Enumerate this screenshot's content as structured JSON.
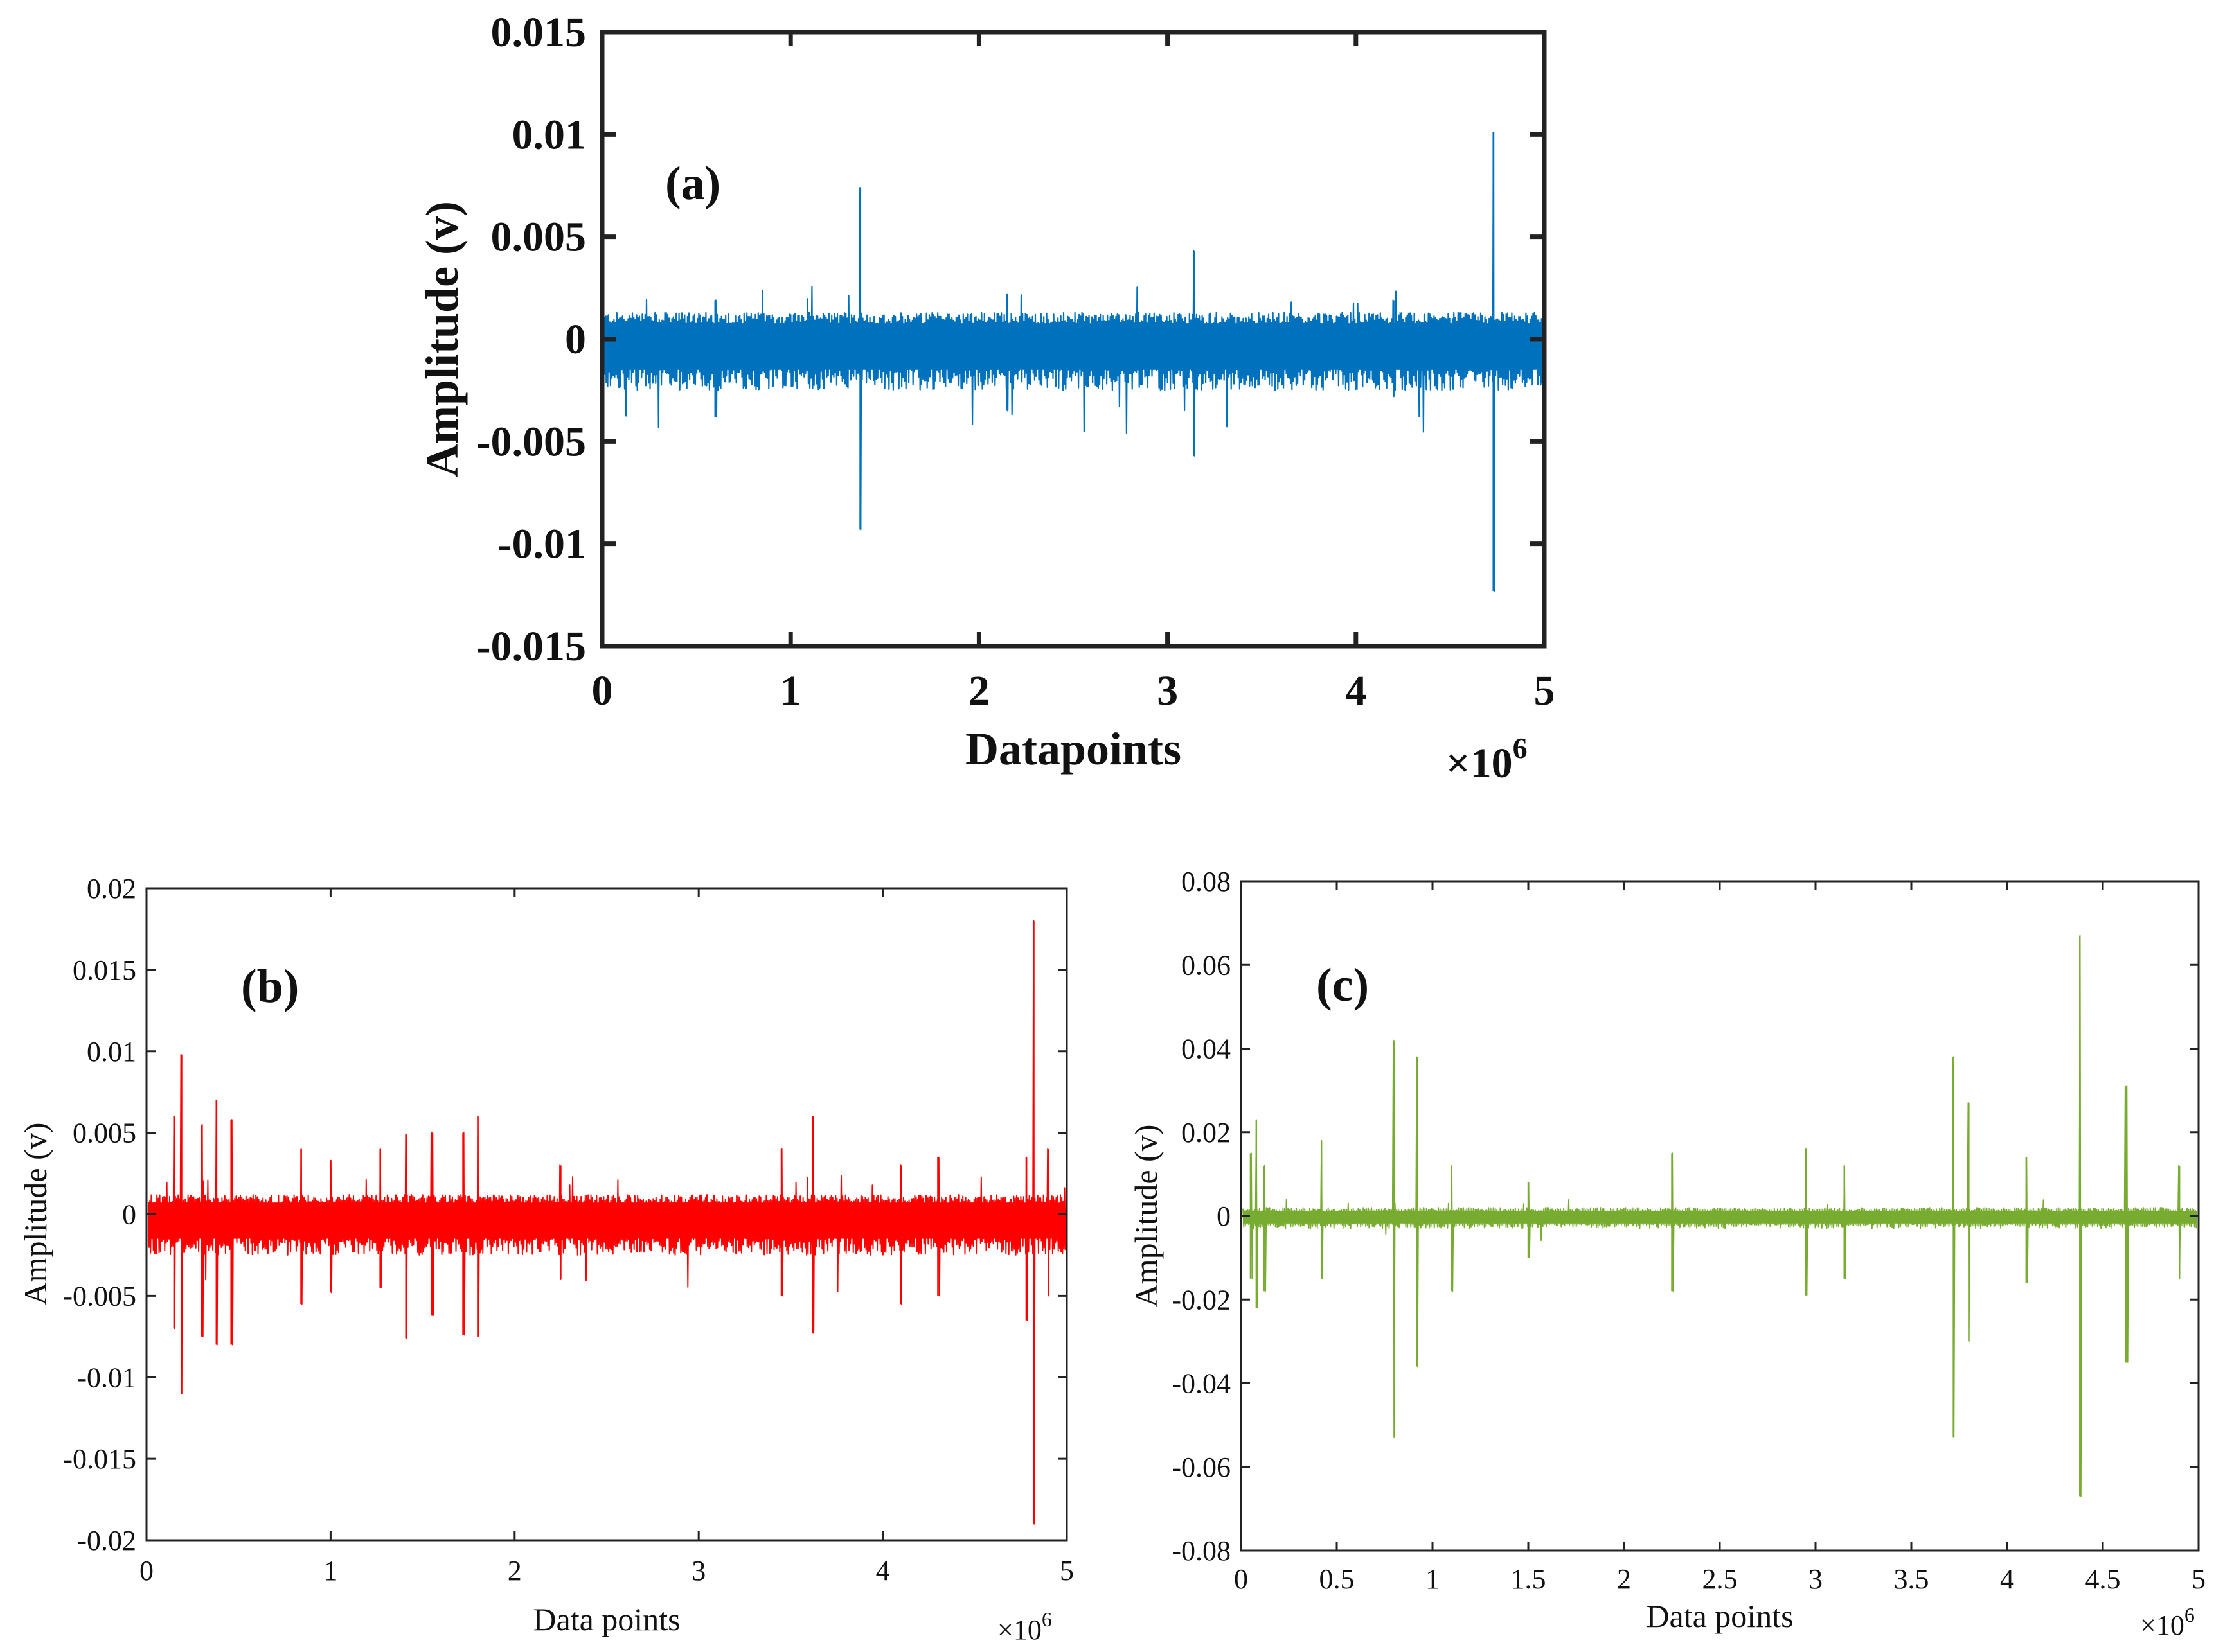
{
  "chart_data": [
    {
      "type": "line",
      "panel": "(a)",
      "xlabel": "Datapoints",
      "ylabel": "Amplitude (v)",
      "x_multiplier": "×10",
      "x_multiplier_exp": "6",
      "xlim": [
        0,
        5
      ],
      "ylim": [
        -0.015,
        0.015
      ],
      "x_ticks": [
        "0",
        "1",
        "2",
        "3",
        "4",
        "5"
      ],
      "y_ticks": [
        "0.015",
        "0.01",
        "0.005",
        "0",
        "-0.005",
        "-0.01",
        "-0.015"
      ],
      "color": "#0072BD",
      "noise_band": [
        -0.0025,
        0.0013
      ],
      "spikes": [
        {
          "x": 0.6,
          "hi": 0.0019,
          "lo": -0.0038
        },
        {
          "x": 1.37,
          "hi": 0.0074,
          "lo": -0.0093
        },
        {
          "x": 2.15,
          "hi": 0.0022,
          "lo": -0.0035
        },
        {
          "x": 3.14,
          "hi": 0.0043,
          "lo": -0.0057
        },
        {
          "x": 4.2,
          "hi": 0.0019,
          "lo": -0.0028
        },
        {
          "x": 4.73,
          "hi": 0.0101,
          "lo": -0.0123
        }
      ]
    },
    {
      "type": "line",
      "panel": "(b)",
      "xlabel": "Data points",
      "ylabel": "Amplitude (v)",
      "x_multiplier": "×10",
      "x_multiplier_exp": "6",
      "xlim": [
        0,
        5
      ],
      "ylim": [
        -0.02,
        0.02
      ],
      "x_ticks": [
        "0",
        "1",
        "2",
        "3",
        "4",
        "5"
      ],
      "y_ticks": [
        "0.02",
        "0.015",
        "0.01",
        "0.005",
        "0",
        "-0.005",
        "-0.01",
        "-0.015",
        "-0.02"
      ],
      "color": "#FF0000",
      "noise_band": [
        -0.0025,
        0.0012
      ],
      "spikes": [
        {
          "x": 0.15,
          "hi": 0.006,
          "lo": -0.007
        },
        {
          "x": 0.19,
          "hi": 0.0098,
          "lo": -0.011
        },
        {
          "x": 0.3,
          "hi": 0.0055,
          "lo": -0.0075
        },
        {
          "x": 0.38,
          "hi": 0.007,
          "lo": -0.008
        },
        {
          "x": 0.46,
          "hi": 0.0058,
          "lo": -0.008
        },
        {
          "x": 0.84,
          "hi": 0.004,
          "lo": -0.0055
        },
        {
          "x": 1.0,
          "hi": 0.0033,
          "lo": -0.0048
        },
        {
          "x": 1.27,
          "hi": 0.004,
          "lo": -0.0045
        },
        {
          "x": 1.41,
          "hi": 0.0049,
          "lo": -0.0076
        },
        {
          "x": 1.55,
          "hi": 0.005,
          "lo": -0.0062
        },
        {
          "x": 1.72,
          "hi": 0.005,
          "lo": -0.0074
        },
        {
          "x": 1.8,
          "hi": 0.006,
          "lo": -0.0075
        },
        {
          "x": 2.25,
          "hi": 0.003,
          "lo": -0.004
        },
        {
          "x": 3.45,
          "hi": 0.004,
          "lo": -0.005
        },
        {
          "x": 3.62,
          "hi": 0.006,
          "lo": -0.0073
        },
        {
          "x": 4.1,
          "hi": 0.003,
          "lo": -0.0055
        },
        {
          "x": 4.3,
          "hi": 0.0035,
          "lo": -0.005
        },
        {
          "x": 4.78,
          "hi": 0.0035,
          "lo": -0.0065
        },
        {
          "x": 4.82,
          "hi": 0.018,
          "lo": -0.019
        },
        {
          "x": 4.9,
          "hi": 0.004,
          "lo": -0.005
        }
      ]
    },
    {
      "type": "line",
      "panel": "(c)",
      "xlabel": "Data points",
      "ylabel": "Amplitude (v)",
      "x_multiplier": "×10",
      "x_multiplier_exp": "6",
      "xlim": [
        0,
        5
      ],
      "ylim": [
        -0.08,
        0.08
      ],
      "x_ticks": [
        "0",
        "0.5",
        "1",
        "1.5",
        "2",
        "2.5",
        "3",
        "3.5",
        "4",
        "4.5",
        "5"
      ],
      "y_ticks": [
        "0.08",
        "0.06",
        "0.04",
        "0.02",
        "0",
        "-0.02",
        "-0.04",
        "-0.06",
        "-0.08"
      ],
      "color": "#77AC30",
      "noise_band": [
        -0.003,
        0.002
      ],
      "spikes": [
        {
          "x": 0.05,
          "hi": 0.015,
          "lo": -0.015
        },
        {
          "x": 0.08,
          "hi": 0.023,
          "lo": -0.022
        },
        {
          "x": 0.12,
          "hi": 0.012,
          "lo": -0.018
        },
        {
          "x": 0.42,
          "hi": 0.018,
          "lo": -0.015
        },
        {
          "x": 0.8,
          "hi": 0.042,
          "lo": -0.053
        },
        {
          "x": 0.92,
          "hi": 0.038,
          "lo": -0.036
        },
        {
          "x": 1.1,
          "hi": 0.012,
          "lo": -0.018
        },
        {
          "x": 1.5,
          "hi": 0.008,
          "lo": -0.01
        },
        {
          "x": 2.25,
          "hi": 0.015,
          "lo": -0.018
        },
        {
          "x": 2.95,
          "hi": 0.016,
          "lo": -0.019
        },
        {
          "x": 3.15,
          "hi": 0.012,
          "lo": -0.015
        },
        {
          "x": 3.72,
          "hi": 0.038,
          "lo": -0.053
        },
        {
          "x": 3.8,
          "hi": 0.027,
          "lo": -0.03
        },
        {
          "x": 4.1,
          "hi": 0.014,
          "lo": -0.016
        },
        {
          "x": 4.38,
          "hi": 0.067,
          "lo": -0.067
        },
        {
          "x": 4.62,
          "hi": 0.031,
          "lo": -0.035
        },
        {
          "x": 4.9,
          "hi": 0.012,
          "lo": -0.015
        }
      ]
    }
  ]
}
